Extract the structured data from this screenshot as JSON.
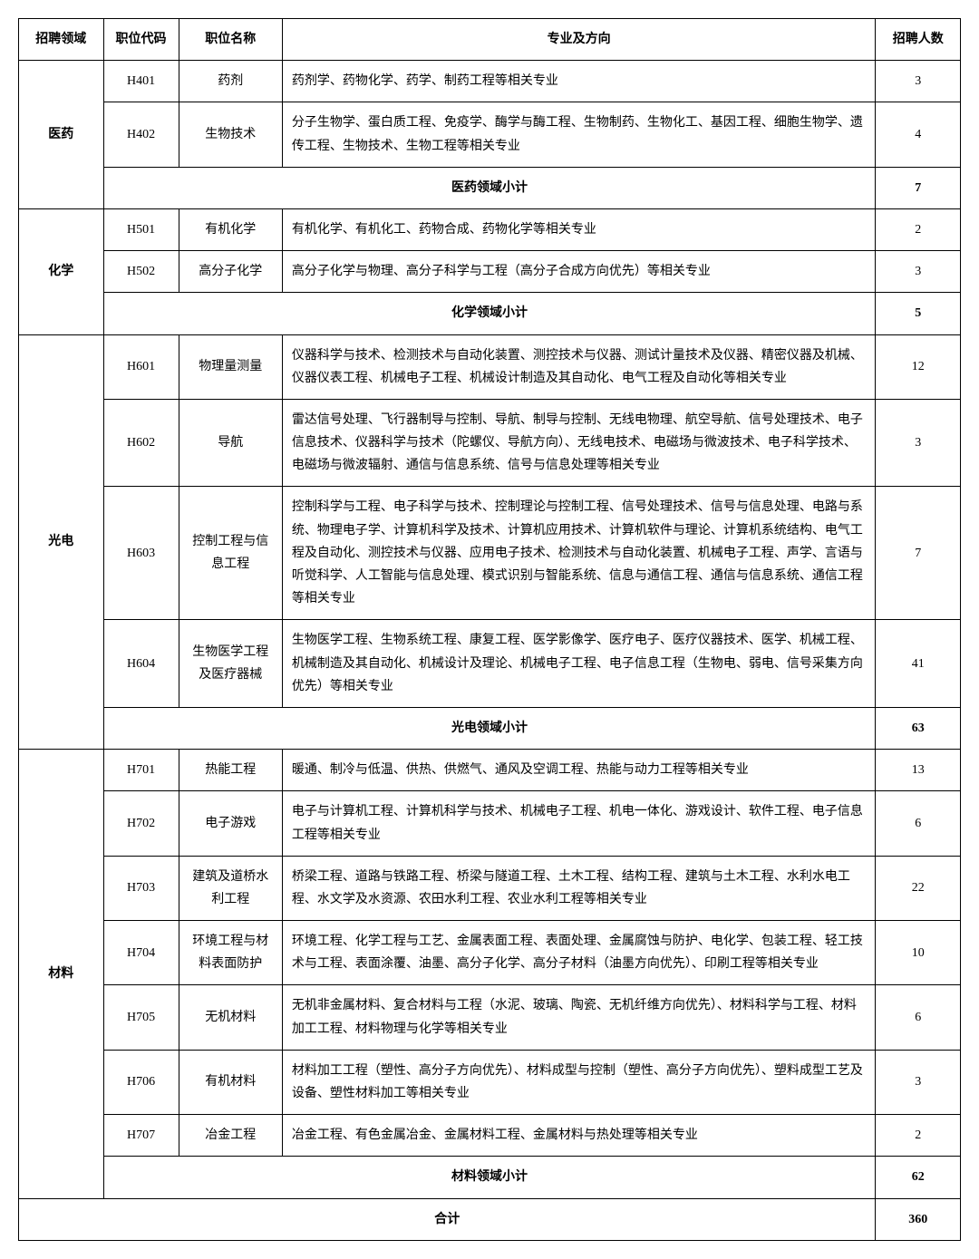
{
  "headers": {
    "field": "招聘领域",
    "code": "职位代码",
    "name": "职位名称",
    "major": "专业及方向",
    "count": "招聘人数"
  },
  "domains": [
    {
      "field": "医药",
      "rows": [
        {
          "code": "H401",
          "name": "药剂",
          "major": "药剂学、药物化学、药学、制药工程等相关专业",
          "count": "3"
        },
        {
          "code": "H402",
          "name": "生物技术",
          "major": "分子生物学、蛋白质工程、免疫学、酶学与酶工程、生物制药、生物化工、基因工程、细胞生物学、遗传工程、生物技术、生物工程等相关专业",
          "count": "4"
        }
      ],
      "subtotal_label": "医药领域小计",
      "subtotal_count": "7"
    },
    {
      "field": "化学",
      "rows": [
        {
          "code": "H501",
          "name": "有机化学",
          "major": "有机化学、有机化工、药物合成、药物化学等相关专业",
          "count": "2"
        },
        {
          "code": "H502",
          "name": "高分子化学",
          "major": "高分子化学与物理、高分子科学与工程（高分子合成方向优先）等相关专业",
          "count": "3"
        }
      ],
      "subtotal_label": "化学领域小计",
      "subtotal_count": "5"
    },
    {
      "field": "光电",
      "rows": [
        {
          "code": "H601",
          "name": "物理量测量",
          "major": "仪器科学与技术、检测技术与自动化装置、测控技术与仪器、测试计量技术及仪器、精密仪器及机械、仪器仪表工程、机械电子工程、机械设计制造及其自动化、电气工程及自动化等相关专业",
          "count": "12"
        },
        {
          "code": "H602",
          "name": "导航",
          "major": "雷达信号处理、飞行器制导与控制、导航、制导与控制、无线电物理、航空导航、信号处理技术、电子信息技术、仪器科学与技术（陀螺仪、导航方向）、无线电技术、电磁场与微波技术、电子科学技术、电磁场与微波辐射、通信与信息系统、信号与信息处理等相关专业",
          "count": "3"
        },
        {
          "code": "H603",
          "name": "控制工程与信息工程",
          "major": "控制科学与工程、电子科学与技术、控制理论与控制工程、信号处理技术、信号与信息处理、电路与系统、物理电子学、计算机科学及技术、计算机应用技术、计算机软件与理论、计算机系统结构、电气工程及自动化、测控技术与仪器、应用电子技术、检测技术与自动化装置、机械电子工程、声学、言语与听觉科学、人工智能与信息处理、模式识别与智能系统、信息与通信工程、通信与信息系统、通信工程等相关专业",
          "count": "7"
        },
        {
          "code": "H604",
          "name": "生物医学工程及医疗器械",
          "major": "生物医学工程、生物系统工程、康复工程、医学影像学、医疗电子、医疗仪器技术、医学、机械工程、机械制造及其自动化、机械设计及理论、机械电子工程、电子信息工程（生物电、弱电、信号采集方向优先）等相关专业",
          "count": "41"
        }
      ],
      "subtotal_label": "光电领域小计",
      "subtotal_count": "63"
    },
    {
      "field": "材料",
      "rows": [
        {
          "code": "H701",
          "name": "热能工程",
          "major": "暖通、制冷与低温、供热、供燃气、通风及空调工程、热能与动力工程等相关专业",
          "count": "13"
        },
        {
          "code": "H702",
          "name": "电子游戏",
          "major": "电子与计算机工程、计算机科学与技术、机械电子工程、机电一体化、游戏设计、软件工程、电子信息工程等相关专业",
          "count": "6"
        },
        {
          "code": "H703",
          "name": "建筑及道桥水利工程",
          "major": "桥梁工程、道路与铁路工程、桥梁与隧道工程、土木工程、结构工程、建筑与土木工程、水利水电工程、水文学及水资源、农田水利工程、农业水利工程等相关专业",
          "count": "22"
        },
        {
          "code": "H704",
          "name": "环境工程与材料表面防护",
          "major": "环境工程、化学工程与工艺、金属表面工程、表面处理、金属腐蚀与防护、电化学、包装工程、轻工技术与工程、表面涂覆、油墨、高分子化学、高分子材料（油墨方向优先）、印刷工程等相关专业",
          "count": "10"
        },
        {
          "code": "H705",
          "name": "无机材料",
          "major": "无机非金属材料、复合材料与工程（水泥、玻璃、陶瓷、无机纤维方向优先）、材料科学与工程、材料加工工程、材料物理与化学等相关专业",
          "count": "6"
        },
        {
          "code": "H706",
          "name": "有机材料",
          "major": "材料加工工程（塑性、高分子方向优先）、材料成型与控制（塑性、高分子方向优先）、塑料成型工艺及设备、塑性材料加工等相关专业",
          "count": "3"
        },
        {
          "code": "H707",
          "name": "冶金工程",
          "major": "冶金工程、有色金属冶金、金属材料工程、金属材料与热处理等相关专业",
          "count": "2"
        }
      ],
      "subtotal_label": "材料领域小计",
      "subtotal_count": "62"
    }
  ],
  "total_label": "合计",
  "total_count": "360"
}
